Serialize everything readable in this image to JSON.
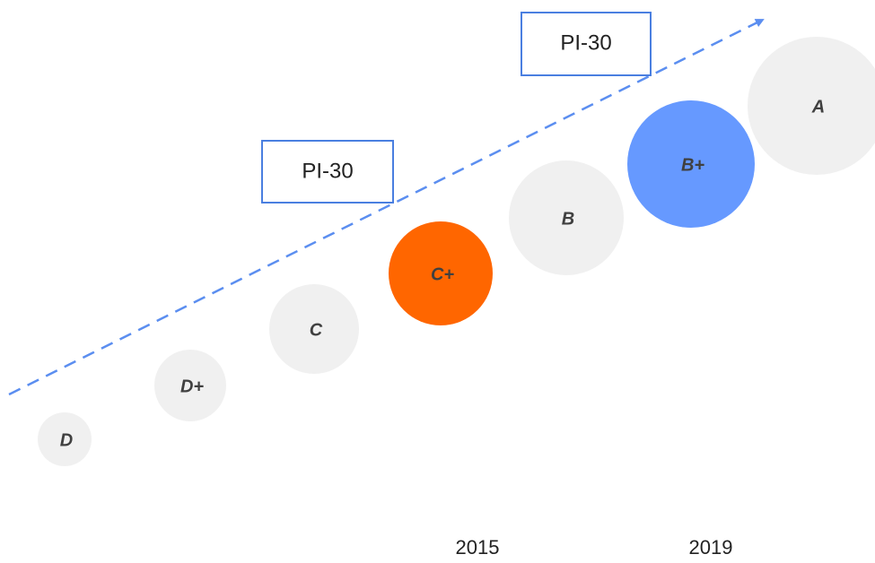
{
  "nodes": [
    {
      "label": "D",
      "color": "#f0f0f0"
    },
    {
      "label": "D+",
      "color": "#f0f0f0"
    },
    {
      "label": "C",
      "color": "#f0f0f0"
    },
    {
      "label": "C+",
      "color": "#ff6600"
    },
    {
      "label": "B",
      "color": "#f0f0f0"
    },
    {
      "label": "B+",
      "color": "#6699ff"
    },
    {
      "label": "A",
      "color": "#f0f0f0"
    }
  ],
  "boxes": [
    {
      "label": "PI-30"
    },
    {
      "label": "PI-30"
    }
  ],
  "years": [
    "2015",
    "2019"
  ]
}
